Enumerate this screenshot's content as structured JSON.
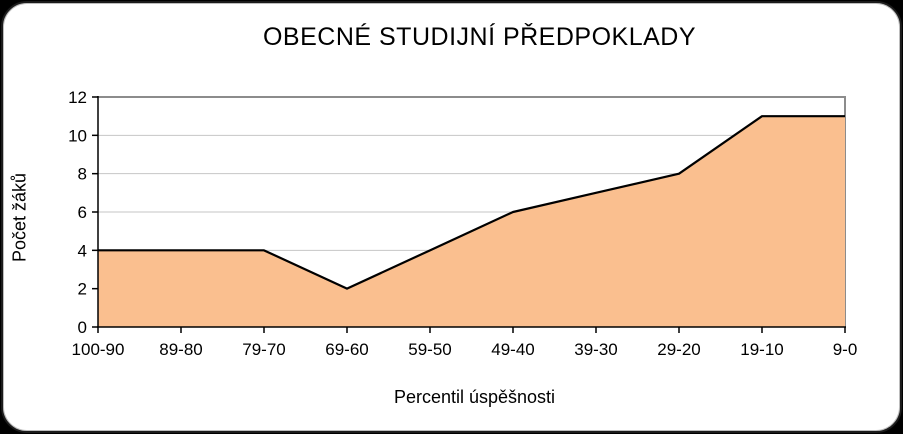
{
  "chart_title": "OBECNÉ STUDIJNÍ PŘEDPOKLADY",
  "chart_data": {
    "type": "area",
    "title": "OBECNÉ STUDIJNÍ PŘEDPOKLADY",
    "categories": [
      "100-90",
      "89-80",
      "79-70",
      "69-60",
      "59-50",
      "49-40",
      "39-30",
      "29-20",
      "19-10",
      "9-0"
    ],
    "series": [
      {
        "name": "Počet žáků",
        "values": [
          4,
          4,
          4,
          2,
          4,
          6,
          7,
          8,
          11,
          11
        ]
      }
    ],
    "xlabel": "Percentil úspěšnosti",
    "ylabel": "Počet žáků",
    "ylim": [
      0,
      12
    ],
    "ytick_step": 2,
    "grid": true,
    "legend_position": "none",
    "colors": {
      "area_fill": "#FABF8F",
      "series_line": "#000000",
      "gridline": "#C6C6C6",
      "plot_border": "#8C8C8C",
      "axis_line": "#000000",
      "card_background": "#FFFFFF",
      "page_background": "#000000"
    }
  }
}
